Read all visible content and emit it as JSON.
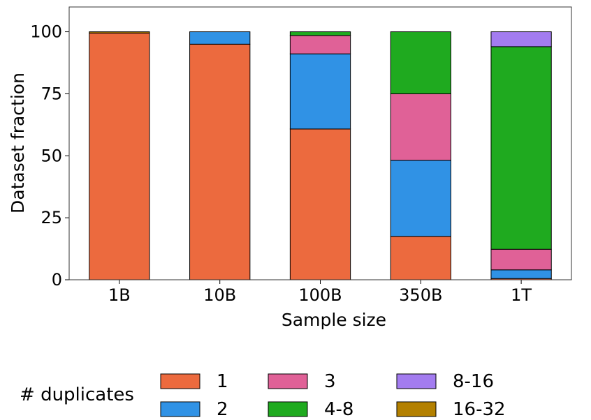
{
  "chart_data": {
    "type": "bar",
    "stacked": true,
    "categories": [
      "1B",
      "10B",
      "100B",
      "350B",
      "1T"
    ],
    "series": [
      {
        "name": "1",
        "color": "#ec6a3e",
        "values": [
          99.5,
          95.0,
          60.8,
          17.5,
          0.5
        ]
      },
      {
        "name": "2",
        "color": "#3092e5",
        "values": [
          0.0,
          5.0,
          30.3,
          30.7,
          3.5
        ]
      },
      {
        "name": "3",
        "color": "#e06197",
        "values": [
          0.0,
          0.0,
          7.4,
          26.8,
          8.3
        ]
      },
      {
        "name": "4-8",
        "color": "#1faa1f",
        "values": [
          0.0,
          0.0,
          1.5,
          25.0,
          81.7
        ]
      },
      {
        "name": "8-16",
        "color": "#a37cf0",
        "values": [
          0.0,
          0.0,
          0.0,
          0.0,
          6.0
        ]
      },
      {
        "name": "16-32",
        "color": "#b38000",
        "values": [
          0.5,
          0.0,
          0.0,
          0.0,
          0.0
        ]
      }
    ],
    "xlabel": "Sample size",
    "ylabel": "Dataset fraction",
    "ylim": [
      0,
      110
    ],
    "yticks": [
      0,
      25,
      50,
      75,
      100
    ],
    "grid": false,
    "legend": {
      "title": "# duplicates",
      "placement": "bottom",
      "columns": 3
    }
  }
}
